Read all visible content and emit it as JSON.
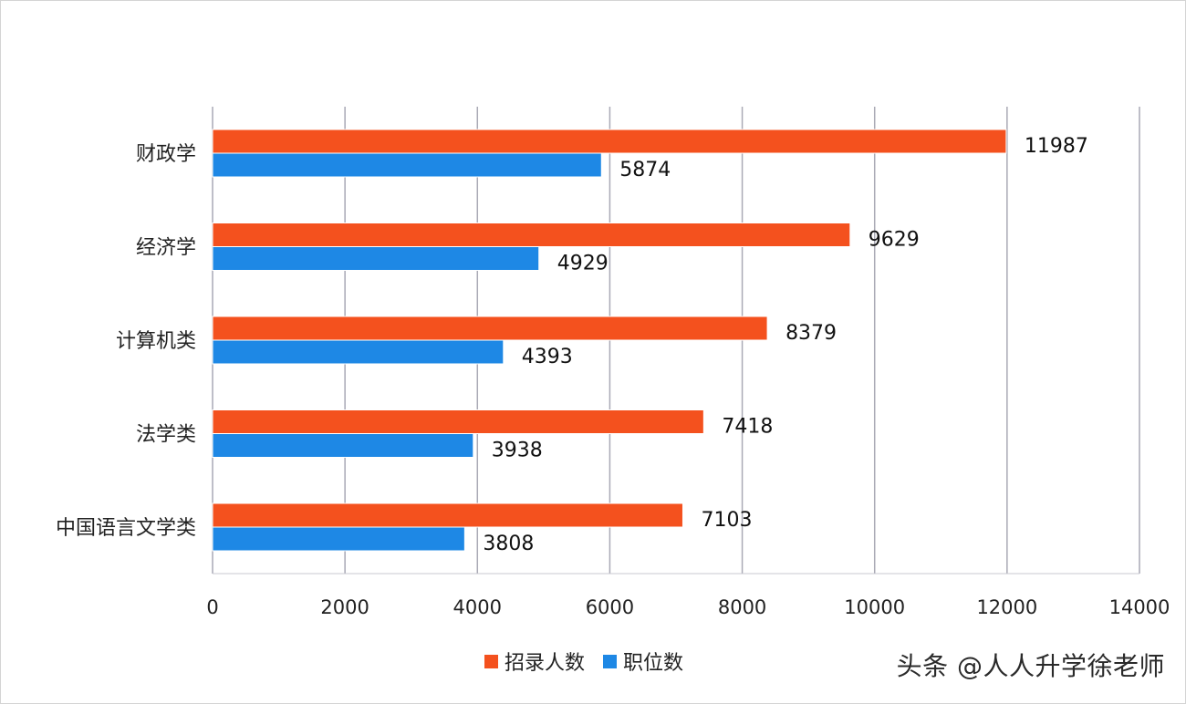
{
  "chart_data": {
    "type": "bar",
    "orientation": "horizontal",
    "categories": [
      "财政学",
      "经济学",
      "计算机类",
      "法学类",
      "中国语言文学类"
    ],
    "series": [
      {
        "name": "招录人数",
        "color": "#f4511e",
        "values": [
          11987,
          9629,
          8379,
          7418,
          7103
        ]
      },
      {
        "name": "职位数",
        "color": "#1e88e5",
        "values": [
          5874,
          4929,
          4393,
          3938,
          3808
        ]
      }
    ],
    "xlim": [
      0,
      14000
    ],
    "xticks": [
      0,
      2000,
      4000,
      6000,
      8000,
      10000,
      12000,
      14000
    ],
    "grid": "vertical",
    "legend_position": "bottom"
  },
  "watermark": "头条 @人人升学徐老师"
}
